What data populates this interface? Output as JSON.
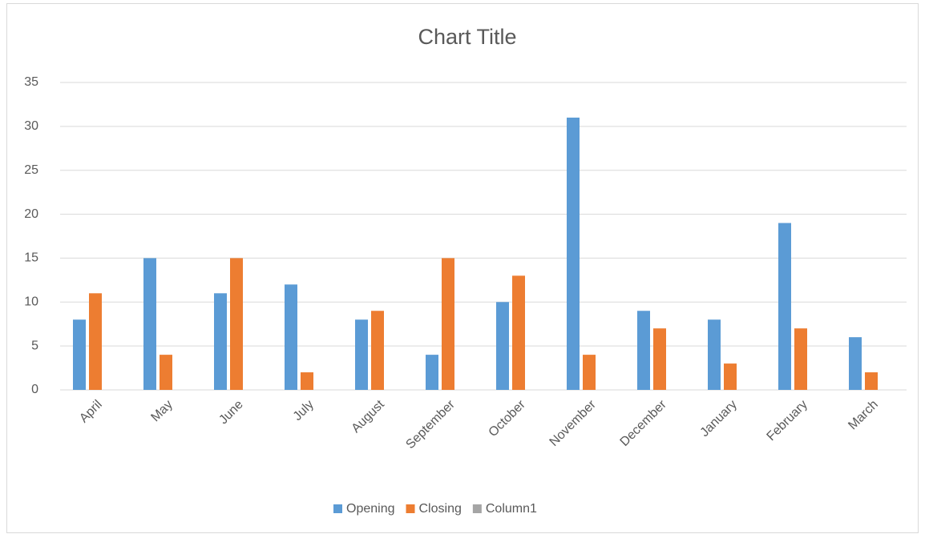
{
  "chart_data": {
    "type": "bar",
    "title": "Chart Title",
    "categories": [
      "April",
      "May",
      "June",
      "July",
      "August",
      "September",
      "October",
      "November",
      "December",
      "January",
      "February",
      "March"
    ],
    "series": [
      {
        "name": "Opening",
        "color": "#5b9bd5",
        "values": [
          8,
          15,
          11,
          12,
          8,
          4,
          10,
          31,
          9,
          8,
          19,
          6
        ]
      },
      {
        "name": "Closing",
        "color": "#ed7d31",
        "values": [
          11,
          4,
          15,
          2,
          9,
          15,
          13,
          4,
          7,
          3,
          7,
          2
        ]
      },
      {
        "name": "Column1",
        "color": "#a5a5a5",
        "values": [
          null,
          null,
          null,
          null,
          null,
          null,
          null,
          null,
          null,
          null,
          null,
          null
        ]
      }
    ],
    "ylim": [
      0,
      35
    ],
    "yticks": [
      0,
      5,
      10,
      15,
      20,
      25,
      30,
      35
    ],
    "grid": true,
    "legend": "bottom"
  }
}
